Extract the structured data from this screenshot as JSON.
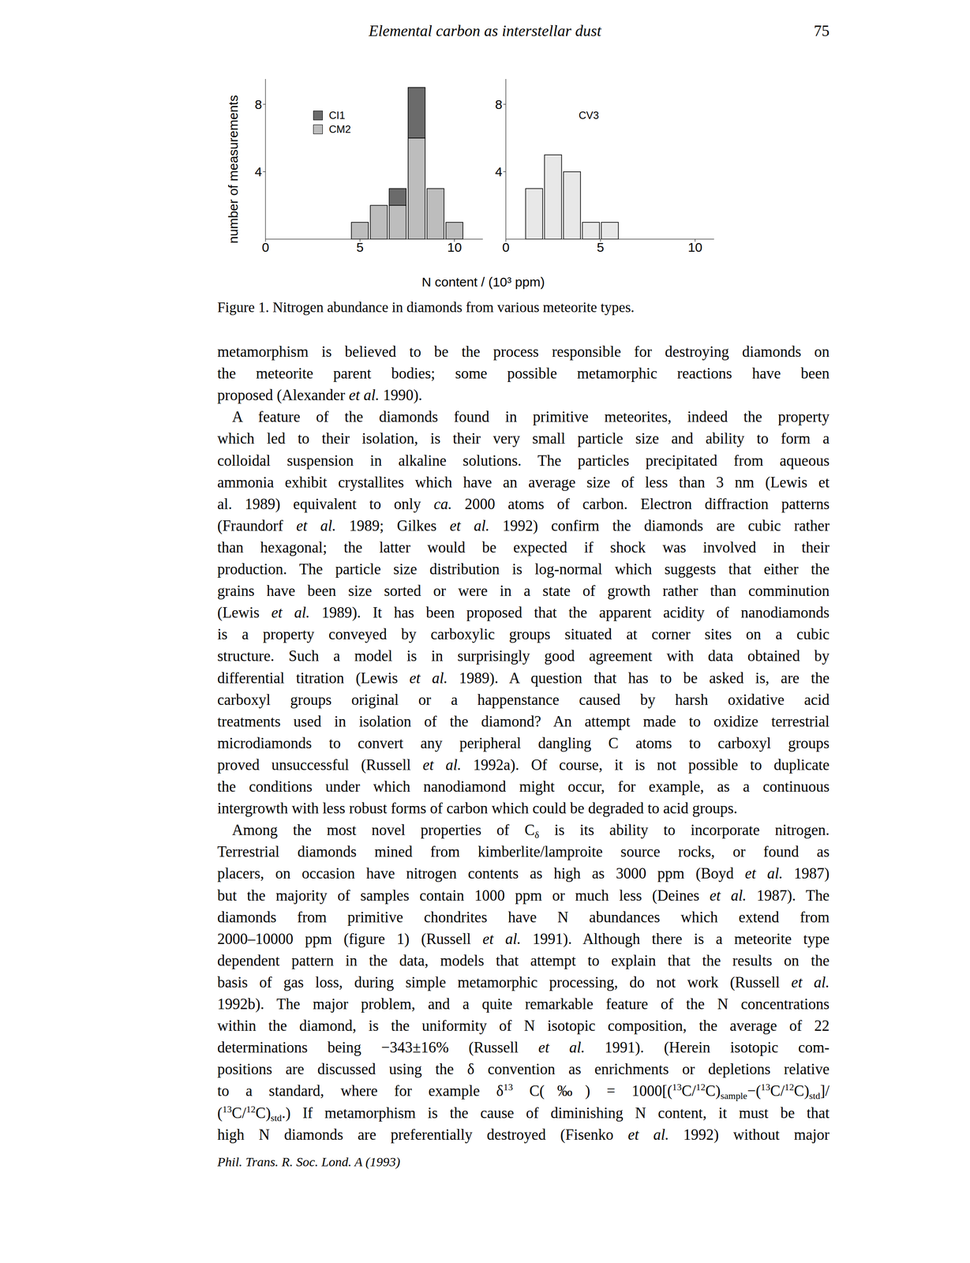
{
  "header": {
    "title": "Elemental carbon as interstellar dust",
    "page": "75"
  },
  "chart_data": [
    {
      "type": "histogram",
      "stacked": true,
      "bins": [
        4.5,
        5.5,
        6.5,
        7.5,
        8.5,
        9.5,
        10.5
      ],
      "series": [
        {
          "name": "CM2",
          "color": "#bdbdbd",
          "values": [
            1,
            2,
            2,
            6,
            3,
            1
          ]
        },
        {
          "name": "CI1",
          "color": "#6b6b6b",
          "values": [
            0,
            0,
            1,
            3,
            0,
            0
          ]
        }
      ],
      "xlim": [
        0,
        11.5
      ],
      "xticks": [
        0,
        5,
        10
      ],
      "ylim": [
        0,
        9.5
      ],
      "yticks": [
        4,
        8
      ],
      "legend": "upper left"
    },
    {
      "type": "histogram",
      "bins": [
        1,
        2,
        3,
        4,
        5,
        6
      ],
      "series": [
        {
          "name": "CV3",
          "color": "#e8e8e8",
          "values": [
            3,
            5,
            4,
            1,
            1
          ]
        }
      ],
      "xlim": [
        0,
        11
      ],
      "xticks": [
        0,
        5,
        10
      ],
      "ylim": [
        0,
        9.5
      ],
      "yticks": [
        4,
        8
      ],
      "legend": "upper center"
    }
  ],
  "figure": {
    "y_label": "number of measurements",
    "x_label": "N content / (10³ ppm)",
    "caption": "Figure 1. Nitrogen abundance in diamonds from various meteorite types."
  },
  "body": [
    {
      "continued": true,
      "lines": [
        "metamorphism is believed to be the process responsible for destroying diamonds on",
        "the meteorite parent bodies; some possible metamorphic reactions have been",
        "proposed (Alexander et al. 1990)."
      ]
    },
    {
      "lines": [
        "A feature of the diamonds found in primitive meteorites, indeed the property",
        "which led to their isolation, is their very small particle size and ability to form a",
        "colloidal suspension in alkaline solutions. The particles precipitated from aqueous",
        "ammonia exhibit crystallites which have an average size of less than 3 nm (Lewis et",
        "al. 1989) equivalent to only ca. 2000 atoms of carbon. Electron diffraction patterns",
        "(Fraundorf et al. 1989; Gilkes et al. 1992) confirm the diamonds are cubic rather",
        "than hexagonal; the latter would be expected if shock was involved in their",
        "production. The particle size distribution is log-normal which suggests that either the",
        "grains have been size sorted or were in a state of growth rather than comminution",
        "(Lewis et al. 1989). It has been proposed that the apparent acidity of nanodiamonds",
        "is a property conveyed by carboxylic groups situated at corner sites on a cubic",
        "structure. Such a model is in surprisingly good agreement with data obtained by",
        "differential titration (Lewis et al. 1989). A question that has to be asked is, are the",
        "carboxyl groups original or a happenstance caused by harsh oxidative acid",
        "treatments used in isolation of the diamond? An attempt made to oxidize terrestrial",
        "microdiamonds to convert any peripheral dangling C atoms to carboxyl groups",
        "proved unsuccessful (Russell et al. 1992a). Of course, it is not possible to duplicate",
        "the conditions under which nanodiamond might occur, for example, as a continuous",
        "intergrowth with less robust forms of carbon which could be degraded to acid groups."
      ]
    },
    {
      "continues": true,
      "lines": [
        [
          "Among the most novel properties of C",
          {
            "sub": "δ"
          },
          " is its ability to incorporate nitrogen."
        ],
        "Terrestrial diamonds mined from kimberlite/lamproite source rocks, or found as",
        "placers, on occasion have nitrogen contents as high as 3000 ppm (Boyd et al. 1987)",
        "but the majority of samples contain 1000 ppm or much less (Deines et al. 1987). The",
        "diamonds from primitive chondrites have N abundances which extend from",
        "2000–10000 ppm (figure 1) (Russell et al. 1991). Although there is a meteorite type",
        "dependent pattern in the data, models that attempt to explain that the results on the",
        "basis of gas loss, during simple metamorphic processing, do not work (Russell et al.",
        "1992b). The major problem, and a quite remarkable feature of the N concentrations",
        "within the diamond, is the uniformity of N isotopic composition, the average of 22",
        "determinations being −343±16% (Russell et al. 1991). (Herein isotopic com-",
        "positions are discussed using the δ convention as enrichments or depletions relative",
        [
          "to a standard, where for example δ",
          {
            "sup": "13"
          },
          " C(‰) = 1000[(",
          {
            "sup": "13"
          },
          "C/",
          {
            "sup": "12"
          },
          "C)",
          {
            "sub": "sample"
          },
          "−(",
          {
            "sup": "13"
          },
          "C/",
          {
            "sup": "12"
          },
          "C)",
          {
            "sub": "std"
          },
          "]/"
        ],
        [
          "(",
          {
            "sup": "13"
          },
          "C/",
          {
            "sup": "12"
          },
          "C)",
          {
            "sub": "std"
          },
          ".) If metamorphism is the cause of diminishing N content, it must be that"
        ],
        "high N diamonds are preferentially destroyed (Fisenko et al. 1992) without major"
      ]
    }
  ],
  "footer": "Phil. Trans. R. Soc. Lond. A (1993)"
}
